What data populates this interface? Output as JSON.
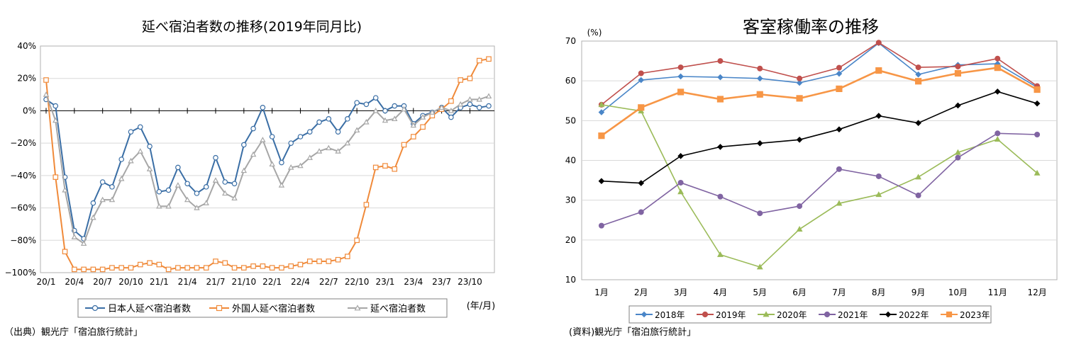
{
  "chart_data": [
    {
      "type": "line",
      "title": "延べ宿泊者数の推移(2019年同月比)",
      "unit_label": "(年/月)",
      "source": "（出典）観光庁「宿泊旅行統計」",
      "ylim": [
        -100,
        40
      ],
      "y_ticks": [
        "40%",
        "20%",
        "0%",
        "−20%",
        "−40%",
        "−60%",
        "−80%",
        "−100%"
      ],
      "x_tick_labels": [
        "20/1",
        "20/4",
        "20/7",
        "20/10",
        "21/1",
        "21/4",
        "21/7",
        "21/10",
        "22/1",
        "22/4",
        "22/7",
        "22/10",
        "23/1",
        "23/4",
        "23/7",
        "23/10"
      ],
      "x_tick_index": [
        0,
        3,
        6,
        9,
        12,
        15,
        18,
        21,
        24,
        27,
        30,
        33,
        36,
        39,
        42,
        45
      ],
      "grid": true,
      "legend_position": "bottom",
      "series": [
        {
          "name": "日本人延べ宿泊者数",
          "color": "#3a6ea5",
          "marker": "circle",
          "values": [
            7,
            3,
            -41,
            -74,
            -79,
            -57,
            -44,
            -47,
            -30,
            -13,
            -10,
            -22,
            -50,
            -49,
            -35,
            -45,
            -51,
            -47,
            -29,
            -44,
            -45,
            -21,
            -11,
            2,
            -16,
            -32,
            -20,
            -16,
            -13,
            -7,
            -5,
            -13,
            -5,
            5,
            4,
            8,
            0,
            3,
            3,
            -8,
            -3,
            -1,
            2,
            -4,
            2,
            4,
            2,
            3
          ]
        },
        {
          "name": "外国人延べ宿泊者数",
          "color": "#f08a3a",
          "marker": "square",
          "values": [
            19,
            -41,
            -87,
            -98,
            -98,
            -98,
            -98,
            -97,
            -97,
            -97,
            -95,
            -94,
            -95,
            -98,
            -97,
            -97,
            -97,
            -97,
            -93,
            -94,
            -97,
            -97,
            -96,
            -96,
            -97,
            -97,
            -96,
            -95,
            -93,
            -93,
            -93,
            -92,
            -90,
            -80,
            -58,
            -35,
            -34,
            -36,
            -21,
            -16,
            -10,
            -3,
            1,
            6,
            19,
            20,
            31,
            32
          ]
        },
        {
          "name": "延べ宿泊者数",
          "color": "#a6a6a6",
          "marker": "triangle",
          "values": [
            10,
            -6,
            -49,
            -78,
            -82,
            -66,
            -55,
            -55,
            -42,
            -31,
            -25,
            -36,
            -59,
            -59,
            -46,
            -55,
            -60,
            -57,
            -43,
            -51,
            -54,
            -37,
            -27,
            -18,
            -33,
            -46,
            -35,
            -34,
            -29,
            -25,
            -23,
            -25,
            -20,
            -12,
            -7,
            0,
            -6,
            -5,
            1,
            -9,
            -4,
            -1,
            2,
            0,
            4,
            7,
            7,
            9
          ]
        }
      ]
    },
    {
      "type": "line",
      "title": "客室稼働率の推移",
      "ylabel": "(%)",
      "source": "(資料)観光庁「宿泊旅行統計」",
      "ylim": [
        10,
        70
      ],
      "y_ticks": [
        "70",
        "60",
        "50",
        "40",
        "30",
        "20",
        "10"
      ],
      "categories": [
        "1月",
        "2月",
        "3月",
        "4月",
        "5月",
        "6月",
        "7月",
        "8月",
        "9月",
        "10月",
        "11月",
        "12月"
      ],
      "grid": true,
      "legend_position": "bottom",
      "series": [
        {
          "name": "2018年",
          "color": "#4a86c8",
          "marker": "diamond",
          "values": [
            52.1,
            60.2,
            61.1,
            60.9,
            60.6,
            59.5,
            61.8,
            69.5,
            61.6,
            64.0,
            64.3,
            58.4
          ]
        },
        {
          "name": "2019年",
          "color": "#c0504d",
          "marker": "circle",
          "values": [
            54.0,
            61.9,
            63.4,
            65.0,
            63.1,
            60.6,
            63.3,
            69.6,
            63.4,
            63.6,
            65.6,
            58.7
          ]
        },
        {
          "name": "2020年",
          "color": "#9bbb59",
          "marker": "triangle",
          "values": [
            54.0,
            52.4,
            32.1,
            16.3,
            13.2,
            22.7,
            29.2,
            31.4,
            35.8,
            42.0,
            45.3,
            36.8
          ]
        },
        {
          "name": "2021年",
          "color": "#8064a2",
          "marker": "circle",
          "values": [
            23.6,
            27.0,
            34.4,
            30.9,
            26.7,
            28.5,
            37.8,
            36.0,
            31.2,
            40.7,
            46.8,
            46.5
          ]
        },
        {
          "name": "2022年",
          "color": "#000000",
          "marker": "diamond",
          "values": [
            34.8,
            34.3,
            41.1,
            43.4,
            44.3,
            45.2,
            47.8,
            51.2,
            49.4,
            53.8,
            57.3,
            54.3
          ]
        },
        {
          "name": "2023年",
          "color": "#f79646",
          "marker": "square",
          "values": [
            46.2,
            53.3,
            57.2,
            55.4,
            56.6,
            55.6,
            58.0,
            62.6,
            59.9,
            61.9,
            63.3,
            57.8
          ]
        }
      ]
    }
  ]
}
